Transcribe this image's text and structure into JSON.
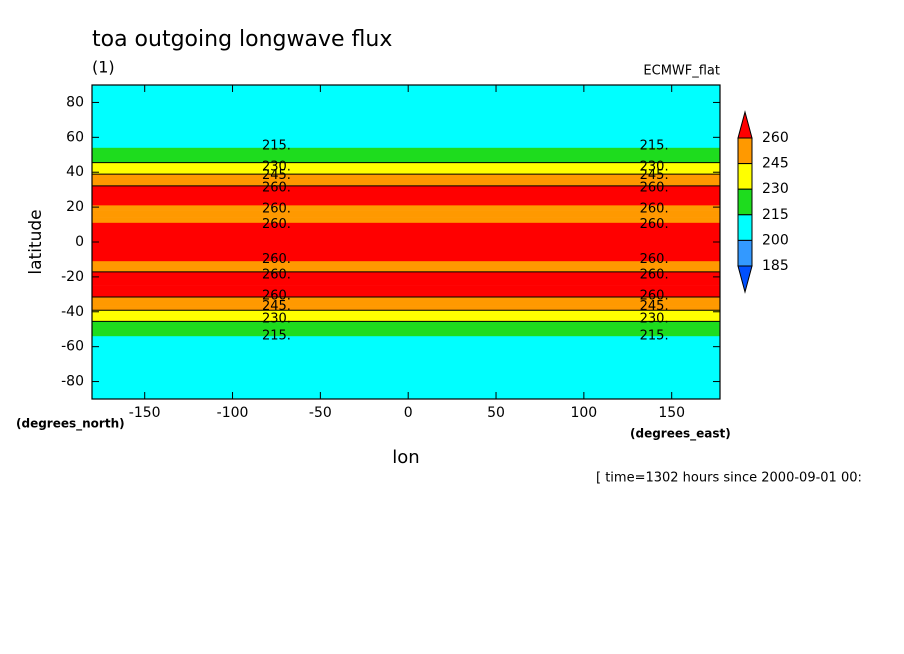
{
  "chart_data": {
    "type": "contour",
    "title": "toa outgoing longwave flux",
    "subtitle": "(1)",
    "dataset": "ECMWF_flat",
    "y_label": "latitude",
    "x_label": "lon",
    "y_units": "(degrees_north)",
    "x_units": "(degrees_east)",
    "footnote": "[ time=1302 hours since 2000-09-01 00:",
    "xlim": [
      -180,
      177.5
    ],
    "ylim": [
      -90,
      90
    ],
    "xticks": [
      -150,
      -100,
      -50,
      0,
      50,
      100,
      150
    ],
    "yticks": [
      -80,
      -60,
      -40,
      -20,
      0,
      20,
      40,
      60,
      80
    ],
    "levels": [
      185,
      200,
      215,
      230,
      245,
      260
    ],
    "colors": [
      "#0050ff",
      "#3399ff",
      "#00ffff",
      "#1edc1e",
      "#ffff00",
      "#ff9900",
      "#ff0000"
    ],
    "y": [
      90,
      56,
      54,
      47,
      44,
      40,
      37,
      33,
      30,
      25,
      21,
      18,
      14,
      11,
      5,
      0,
      -5,
      -11,
      -14,
      -16,
      -20,
      -25,
      -30,
      -33,
      -37,
      -40,
      -44,
      -47,
      -54,
      -56,
      -90
    ],
    "values": [
      205,
      205,
      215,
      228,
      232,
      242,
      250,
      258,
      265,
      268,
      260,
      252,
      255,
      260,
      270,
      272,
      270,
      260,
      255,
      258,
      265,
      268,
      262,
      258,
      250,
      243,
      232,
      228,
      215,
      205,
      205
    ],
    "contour_label_x": [
      -75,
      140
    ],
    "contour_labels": [
      {
        "value": 215,
        "label": "215.",
        "y": 55
      },
      {
        "value": 230,
        "label": "230.",
        "y": 43
      },
      {
        "value": 245,
        "label": "245.",
        "y": 38
      },
      {
        "value": 260,
        "label": "260.",
        "y": 31
      },
      {
        "value": 260,
        "label": "260.",
        "y": 19
      },
      {
        "value": 260,
        "label": "260.",
        "y": 10
      },
      {
        "value": 260,
        "label": "260.",
        "y": -10
      },
      {
        "value": 260,
        "label": "260.",
        "y": -19
      },
      {
        "value": 260,
        "label": "260.",
        "y": -31
      },
      {
        "value": 245,
        "label": "245.",
        "y": -37
      },
      {
        "value": 230,
        "label": "230.",
        "y": -44
      },
      {
        "value": 215,
        "label": "215.",
        "y": -54
      }
    ]
  }
}
